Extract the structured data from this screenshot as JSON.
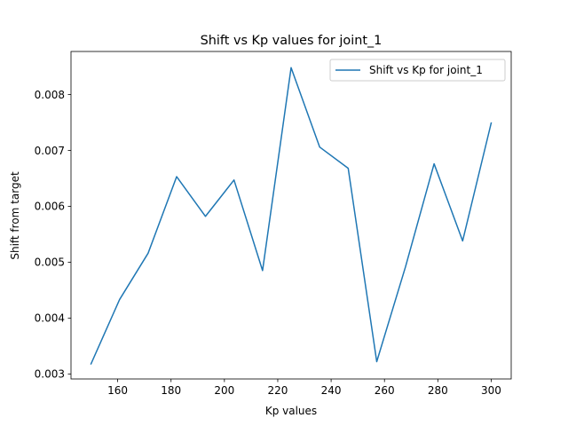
{
  "chart_data": {
    "type": "line",
    "title": "Shift vs Kp values for joint_1",
    "xlabel": "Kp values",
    "ylabel": "Shift from target",
    "xlim": [
      142.5,
      307.5
    ],
    "ylim": [
      0.00291,
      0.00877
    ],
    "xticks": [
      160,
      180,
      200,
      220,
      240,
      260,
      280,
      300
    ],
    "xtick_labels": [
      "160",
      "180",
      "200",
      "220",
      "240",
      "260",
      "280",
      "300"
    ],
    "yticks": [
      0.003,
      0.004,
      0.005,
      0.006,
      0.007,
      0.008
    ],
    "ytick_labels": [
      "0.003",
      "0.004",
      "0.005",
      "0.006",
      "0.007",
      "0.008"
    ],
    "grid": false,
    "legend_position": "top-right",
    "series": [
      {
        "name": "Shift vs Kp for joint_1",
        "color": "#1f77b4",
        "x": [
          150,
          160.7,
          171.4,
          182.1,
          192.9,
          203.6,
          214.3,
          225,
          235.7,
          246.4,
          257.1,
          267.9,
          278.6,
          289.3,
          300
        ],
        "y": [
          0.00318,
          0.00433,
          0.00516,
          0.00653,
          0.00582,
          0.00647,
          0.00485,
          0.00848,
          0.00706,
          0.00668,
          0.00322,
          0.00492,
          0.00676,
          0.00538,
          0.00749
        ]
      }
    ]
  }
}
